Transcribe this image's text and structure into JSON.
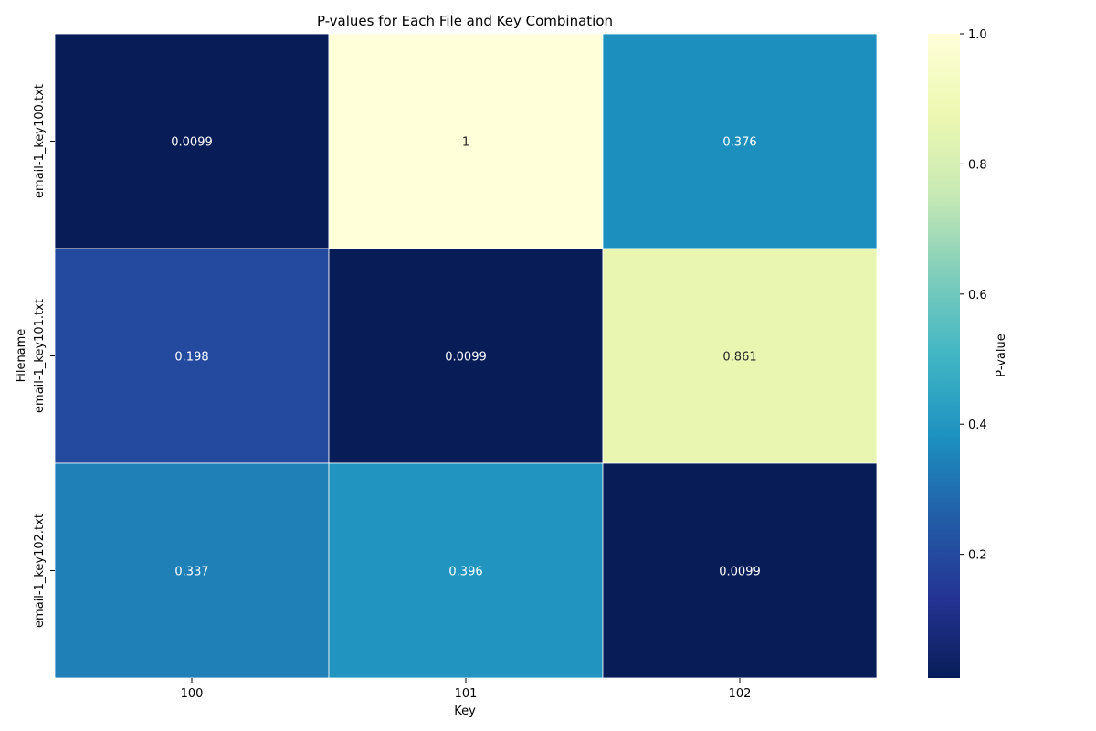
{
  "chart_data": {
    "type": "heatmap",
    "title": "P-values for Each File and Key Combination",
    "xlabel": "Key",
    "ylabel": "Filename",
    "x_categories": [
      "100",
      "101",
      "102"
    ],
    "y_categories": [
      "email-1_key100.txt",
      "email-1_key101.txt",
      "email-1_key102.txt"
    ],
    "values": [
      [
        0.0099,
        1,
        0.376
      ],
      [
        0.198,
        0.0099,
        0.861
      ],
      [
        0.337,
        0.396,
        0.0099
      ]
    ],
    "cell_labels": [
      [
        "0.0099",
        "1",
        "0.376"
      ],
      [
        "0.198",
        "0.0099",
        "0.861"
      ],
      [
        "0.337",
        "0.396",
        "0.0099"
      ]
    ],
    "colorbar": {
      "label": "P-value",
      "range": [
        0.0099,
        1.0
      ],
      "ticks": [
        0.2,
        0.4,
        0.6,
        0.8,
        1.0
      ],
      "tick_labels": [
        "0.2",
        "0.4",
        "0.6",
        "0.8",
        "1.0"
      ],
      "colormap": "YlGnBu_r"
    }
  }
}
